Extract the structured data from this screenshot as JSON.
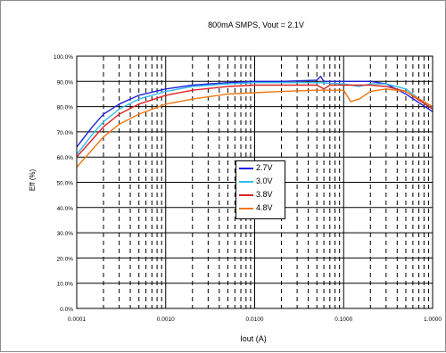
{
  "chart_data": {
    "type": "line",
    "title": "800mA SMPS, Vout = 2.1V",
    "xlabel": "Iout (A)",
    "ylabel": "Eff (%)",
    "xscale": "log",
    "xlim": [
      0.0001,
      1
    ],
    "ylim": [
      0,
      100
    ],
    "x_ticks": [
      0.0001,
      0.001,
      0.01,
      0.1,
      1
    ],
    "x_tick_labels": [
      "0.0001",
      "0.0010",
      "0.0100",
      "0.1000",
      "1.0000"
    ],
    "y_ticks": [
      0,
      10,
      20,
      30,
      40,
      50,
      60,
      70,
      80,
      90,
      100
    ],
    "y_tick_labels": [
      "0.0%",
      "10.0%",
      "20.0%",
      "30.0%",
      "40.0%",
      "50.0%",
      "60.0%",
      "70.0%",
      "80.0%",
      "90.0%",
      "100.0%"
    ],
    "grid": true,
    "legend_position": "center",
    "series": [
      {
        "name": "2.7V",
        "color": "#2222dd",
        "x": [
          0.0001,
          0.00015,
          0.0002,
          0.0003,
          0.0005,
          0.001,
          0.002,
          0.005,
          0.01,
          0.02,
          0.05,
          0.055,
          0.06,
          0.1,
          0.2,
          0.3,
          0.5,
          1
        ],
        "y": [
          64,
          72,
          77,
          81,
          84.5,
          87,
          88.5,
          89.5,
          90,
          90,
          90.5,
          92,
          90,
          90,
          90,
          89,
          85,
          78
        ]
      },
      {
        "name": "3.0V",
        "color": "#33bbee",
        "x": [
          0.0001,
          0.00015,
          0.0002,
          0.0003,
          0.0005,
          0.001,
          0.002,
          0.005,
          0.01,
          0.02,
          0.05,
          0.1,
          0.15,
          0.2,
          0.3,
          0.5,
          1
        ],
        "y": [
          61,
          69,
          74,
          79,
          83,
          86,
          88,
          89,
          89.5,
          89.5,
          89.5,
          89,
          88,
          89,
          89,
          87,
          79
        ]
      },
      {
        "name": "3.8V",
        "color": "#dd2222",
        "x": [
          0.0001,
          0.00015,
          0.0002,
          0.0003,
          0.0005,
          0.001,
          0.002,
          0.005,
          0.01,
          0.02,
          0.05,
          0.06,
          0.07,
          0.1,
          0.2,
          0.3,
          0.5,
          1
        ],
        "y": [
          60,
          67,
          72,
          77,
          81,
          84.5,
          86.5,
          88,
          88.5,
          88.5,
          88.5,
          87,
          88.5,
          88.5,
          88.5,
          88,
          86,
          79
        ]
      },
      {
        "name": "4.8V",
        "color": "#ee7711",
        "x": [
          0.0001,
          0.00015,
          0.0002,
          0.0003,
          0.0005,
          0.001,
          0.002,
          0.005,
          0.01,
          0.02,
          0.05,
          0.1,
          0.12,
          0.15,
          0.2,
          0.3,
          0.5,
          1
        ],
        "y": [
          56,
          63,
          68,
          73,
          77,
          81,
          83,
          85,
          85.5,
          86,
          86.5,
          86.5,
          82,
          83,
          86,
          87,
          86,
          80
        ]
      }
    ]
  }
}
